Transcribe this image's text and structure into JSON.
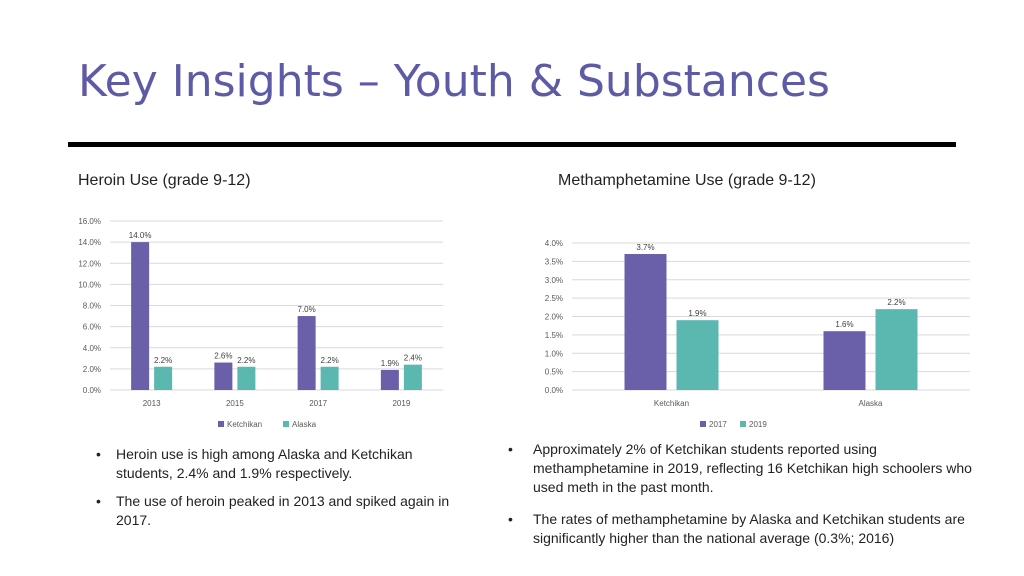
{
  "page": {
    "title": "Key Insights – Youth & Substances"
  },
  "colors": {
    "primary": "#6A5FA9",
    "secondary": "#5BB8B0",
    "title": "#5E5BA6"
  },
  "chart_data": [
    {
      "type": "bar",
      "title": "Heroin Use (grade 9-12)",
      "categories": [
        "2013",
        "2015",
        "2017",
        "2019"
      ],
      "series": [
        {
          "name": "Ketchikan",
          "values": [
            14.0,
            2.6,
            7.0,
            1.9
          ],
          "labels": [
            "14.0%",
            "2.6%",
            "7.0%",
            "1.9%"
          ]
        },
        {
          "name": "Alaska",
          "values": [
            2.2,
            2.2,
            2.2,
            2.4
          ],
          "labels": [
            "2.2%",
            "2.2%",
            "2.2%",
            "2.4%"
          ]
        }
      ],
      "ylim": [
        0,
        16
      ],
      "yticks": [
        "0.0%",
        "2.0%",
        "4.0%",
        "6.0%",
        "8.0%",
        "10.0%",
        "12.0%",
        "14.0%",
        "16.0%"
      ],
      "ytick_values": [
        0,
        2,
        4,
        6,
        8,
        10,
        12,
        14,
        16
      ],
      "grid": true,
      "legend": "bottom"
    },
    {
      "type": "bar",
      "title": "Methamphetamine Use (grade 9-12)",
      "categories": [
        "Ketchikan",
        "Alaska"
      ],
      "series": [
        {
          "name": "2017",
          "values": [
            3.7,
            1.6
          ],
          "labels": [
            "3.7%",
            "1.6%"
          ]
        },
        {
          "name": "2019",
          "values": [
            1.9,
            2.2
          ],
          "labels": [
            "1.9%",
            "2.2%"
          ]
        }
      ],
      "ylim": [
        0,
        4
      ],
      "yticks": [
        "0.0%",
        "0.5%",
        "1.0%",
        "1.5%",
        "2.0%",
        "2.5%",
        "3.0%",
        "3.5%",
        "4.0%"
      ],
      "ytick_values": [
        0,
        0.5,
        1,
        1.5,
        2,
        2.5,
        3,
        3.5,
        4
      ],
      "grid": true,
      "legend": "bottom"
    }
  ],
  "bullets_left": [
    "Heroin use is high among Alaska and Ketchikan students, 2.4% and 1.9% respectively.",
    "The use of heroin peaked in 2013 and spiked again in 2017."
  ],
  "bullets_right": [
    "Approximately 2% of Ketchikan students reported using methamphetamine in 2019, reflecting 16 Ketchikan high schoolers who used meth in the past month.",
    "The rates of methamphetamine by Alaska and Ketchikan students are significantly higher than the national average (0.3%; 2016)"
  ],
  "bullet_glyph": "•"
}
